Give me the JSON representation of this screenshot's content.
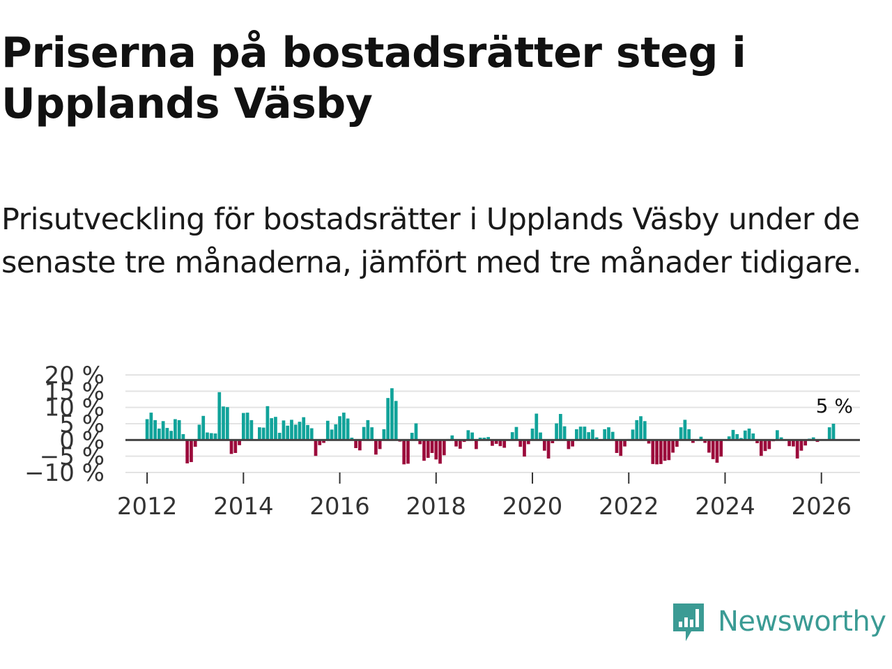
{
  "header": {
    "title": "Priserna på bostadsrätter steg i Upplands Väsby",
    "subtitle": "Prisutveckling för bostadsrätter i Upplands Väsby under de senaste tre månaderna, jämfört med tre månader tidigare."
  },
  "brand": {
    "name": "Newsworthy",
    "icon": "newsworthy-logo-icon"
  },
  "colors": {
    "positive": "#11a39a",
    "negative": "#9b0a3b",
    "grid": "#e3e3e3",
    "zero": "#444444"
  },
  "chart_data": {
    "type": "bar",
    "title": "Priserna på bostadsrätter steg i Upplands Väsby",
    "xlabel": "",
    "ylabel": "",
    "ylim": [
      -10,
      20
    ],
    "xlim": [
      2011.55,
      2026.8
    ],
    "y_ticks": [
      -10,
      -5,
      0,
      5,
      10,
      15,
      20
    ],
    "y_tick_labels": [
      "−10 %",
      "−5 %",
      "0 %",
      "5 %",
      "10 %",
      "15 %",
      "20 %"
    ],
    "x_ticks": [
      2012,
      2014,
      2016,
      2018,
      2020,
      2022,
      2024,
      2026
    ],
    "x_tick_labels": [
      "2012",
      "2014",
      "2016",
      "2018",
      "2020",
      "2022",
      "2024",
      "2026"
    ],
    "start": "2012-01",
    "frequency": "monthly",
    "annotation": {
      "text": "5 %",
      "label_of": "last value"
    },
    "values": [
      6.4,
      8.4,
      6.1,
      3.5,
      5.8,
      3.7,
      2.8,
      6.4,
      6.1,
      1.8,
      -7.2,
      -6.8,
      -2.1,
      4.7,
      7.4,
      2.3,
      2.1,
      2.0,
      14.7,
      10.3,
      10.1,
      -4.3,
      -4.0,
      -1.6,
      8.3,
      8.4,
      6.1,
      0.2,
      3.9,
      3.8,
      10.4,
      6.7,
      7.1,
      2.2,
      6.0,
      4.4,
      6.2,
      4.7,
      5.6,
      7.0,
      4.6,
      3.6,
      -4.9,
      -1.6,
      -0.9,
      5.9,
      3.2,
      4.8,
      7.3,
      8.4,
      6.6,
      0.7,
      -2.5,
      -3.2,
      4.0,
      6.1,
      3.9,
      -4.5,
      -2.8,
      3.3,
      12.9,
      15.9,
      12.0,
      -0.5,
      -7.5,
      -7.3,
      2.2,
      5.1,
      -1.3,
      -6.4,
      -5.5,
      -4.0,
      -6.0,
      -7.3,
      -4.7,
      0.3,
      1.4,
      -2.0,
      -2.7,
      -0.6,
      3.0,
      2.3,
      -2.8,
      0.7,
      0.7,
      0.9,
      -1.8,
      -1.2,
      -1.9,
      -2.4,
      -0.2,
      2.4,
      4.0,
      -2.1,
      -5.1,
      -1.3,
      3.5,
      8.1,
      2.3,
      -3.3,
      -5.7,
      -1.0,
      5.1,
      8.0,
      4.2,
      -2.8,
      -2.0,
      3.3,
      4.1,
      4.1,
      2.4,
      3.2,
      0.8,
      0.2,
      3.3,
      3.9,
      2.5,
      -4.0,
      -4.9,
      -2.0,
      0.3,
      3.2,
      6.1,
      7.3,
      5.8,
      -1.1,
      -7.4,
      -7.5,
      -7.4,
      -6.4,
      -6.2,
      -3.9,
      -2.1,
      3.9,
      6.2,
      3.3,
      -0.9,
      0.2,
      1.0,
      -0.9,
      -3.9,
      -5.9,
      -7.0,
      -5.1,
      0.2,
      1.1,
      3.1,
      1.8,
      0.6,
      2.9,
      3.5,
      2.0,
      -1.0,
      -4.9,
      -3.4,
      -2.8,
      -0.4,
      3.0,
      0.8,
      0.2,
      -1.9,
      -2.0,
      -5.7,
      -3.3,
      -1.7,
      0.4,
      0.8,
      -0.6,
      0.0,
      0.0,
      3.9,
      5.0
    ]
  }
}
